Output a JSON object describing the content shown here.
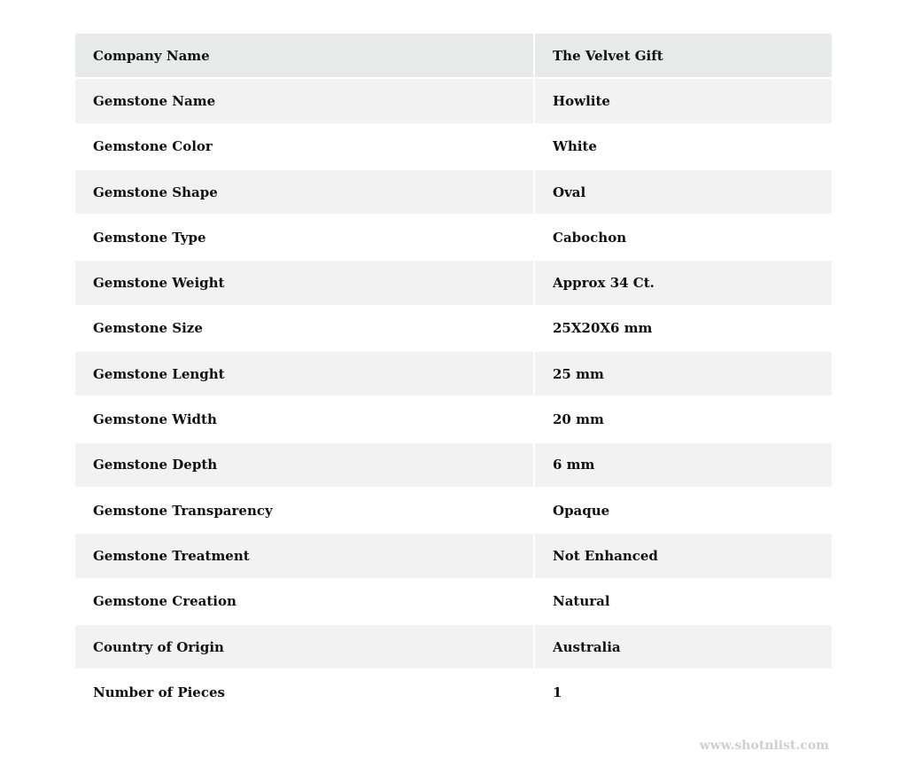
{
  "table": {
    "rows": [
      {
        "label": "Company Name",
        "value": "The Velvet Gift"
      },
      {
        "label": "Gemstone Name",
        "value": "Howlite"
      },
      {
        "label": "Gemstone Color",
        "value": "White"
      },
      {
        "label": "Gemstone Shape",
        "value": "Oval"
      },
      {
        "label": "Gemstone Type",
        "value": "Cabochon"
      },
      {
        "label": "Gemstone Weight",
        "value": "Approx 34 Ct."
      },
      {
        "label": "Gemstone Size",
        "value": "25X20X6 mm"
      },
      {
        "label": "Gemstone Lenght",
        "value": "25 mm"
      },
      {
        "label": "Gemstone Width",
        "value": "20 mm"
      },
      {
        "label": "Gemstone Depth",
        "value": "6 mm"
      },
      {
        "label": "Gemstone Transparency",
        "value": "Opaque"
      },
      {
        "label": "Gemstone Treatment",
        "value": "Not Enhanced"
      },
      {
        "label": "Gemstone Creation",
        "value": "Natural"
      },
      {
        "label": "Country of Origin",
        "value": "Australia"
      },
      {
        "label": "Number of Pieces",
        "value": "1"
      }
    ]
  },
  "watermark": "www.shotnlist.com",
  "colors": {
    "header_bg": "#e8e9e9",
    "stripe_bg": "#f2f2f2",
    "watermark": "#cfcfcf"
  }
}
